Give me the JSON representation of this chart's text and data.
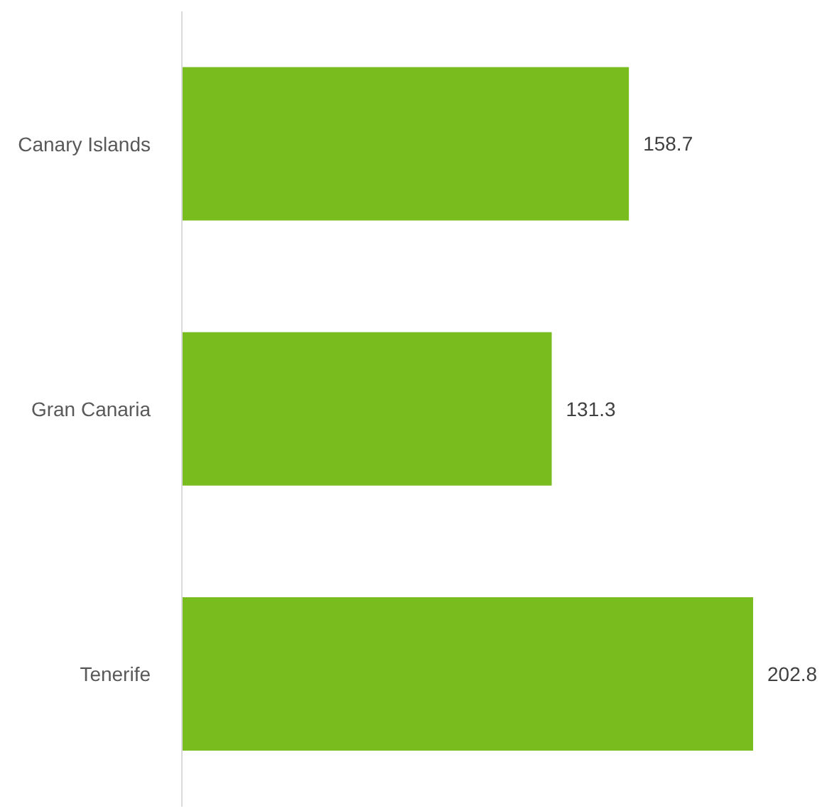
{
  "chart_data": {
    "type": "bar",
    "orientation": "horizontal",
    "categories": [
      "Canary Islands",
      "Gran Canaria",
      "Tenerife"
    ],
    "values": [
      158.7,
      131.3,
      202.8
    ],
    "color": "#78bc1e",
    "data_labels": true
  }
}
